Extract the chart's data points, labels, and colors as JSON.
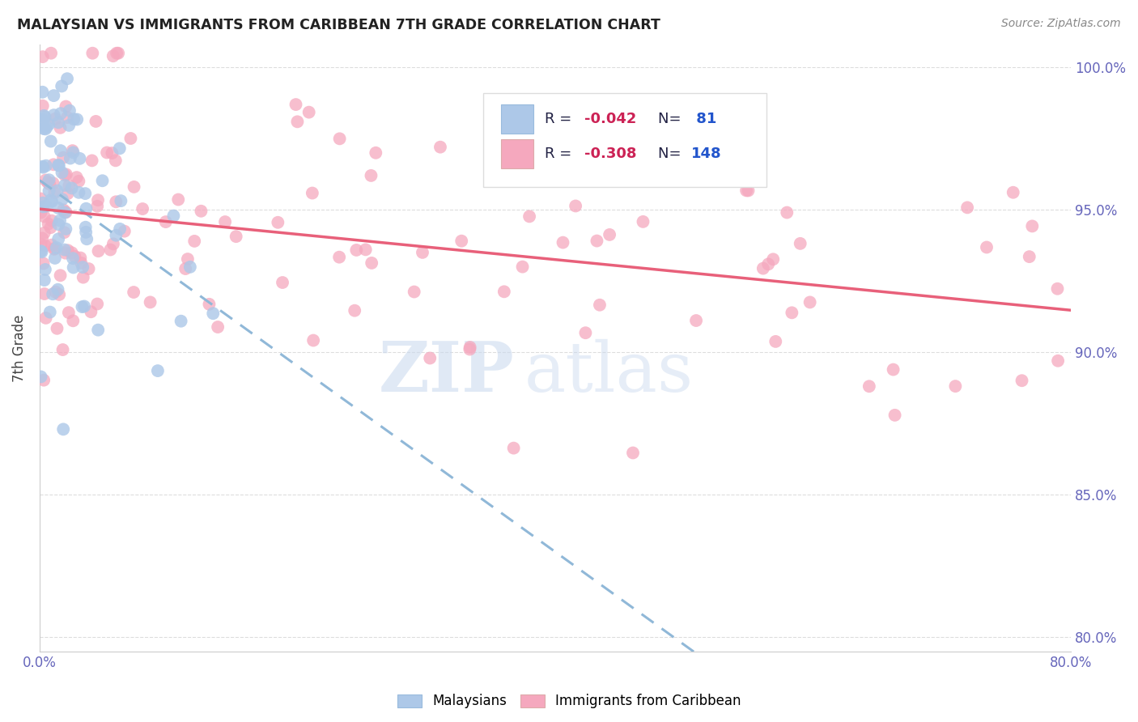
{
  "title": "MALAYSIAN VS IMMIGRANTS FROM CARIBBEAN 7TH GRADE CORRELATION CHART",
  "source": "Source: ZipAtlas.com",
  "ylabel": "7th Grade",
  "x_min": 0.0,
  "x_max": 0.8,
  "y_min": 0.795,
  "y_max": 1.008,
  "x_ticks": [
    0.0,
    0.1,
    0.2,
    0.3,
    0.4,
    0.5,
    0.6,
    0.7,
    0.8
  ],
  "x_tick_labels": [
    "0.0%",
    "",
    "",
    "",
    "",
    "",
    "",
    "",
    "80.0%"
  ],
  "y_ticks": [
    0.8,
    0.85,
    0.9,
    0.95,
    1.0
  ],
  "y_tick_labels": [
    "80.0%",
    "85.0%",
    "90.0%",
    "95.0%",
    "100.0%"
  ],
  "color_blue": "#adc8e8",
  "color_pink": "#f5a8be",
  "color_line_blue": "#90b8d8",
  "color_line_pink": "#e8607a",
  "watermark_zip": "ZIP",
  "watermark_atlas": "atlas",
  "background_color": "#ffffff",
  "grid_color": "#dddddd",
  "tick_color": "#6666bb",
  "title_color": "#222222",
  "source_color": "#888888",
  "ylabel_color": "#444444"
}
